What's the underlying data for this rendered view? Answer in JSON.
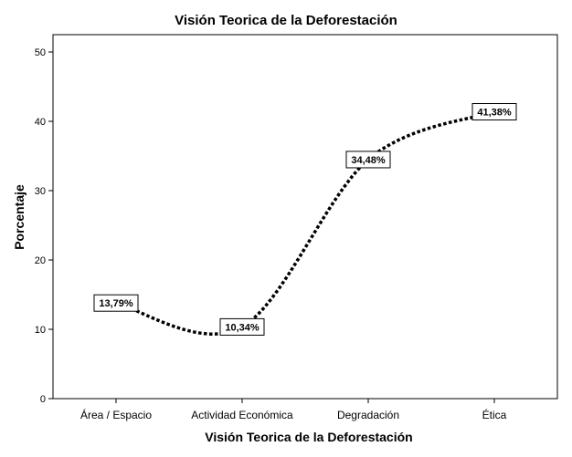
{
  "chart_data": {
    "type": "line",
    "title": "Visión Teorica de la Deforestación",
    "xlabel": "Visión Teorica de la Deforestación",
    "ylabel": "Porcentaje",
    "categories": [
      "Área / Espacio",
      "Actividad Económica",
      "Degradación",
      "Ética"
    ],
    "values": [
      13.79,
      10.34,
      34.48,
      41.38
    ],
    "data_labels": [
      "13,79%",
      "10,34%",
      "34,48%",
      "41,38%"
    ],
    "ylim": [
      0,
      50
    ],
    "yticks": [
      "0",
      "10",
      "20",
      "30",
      "40",
      "50"
    ],
    "grid": false,
    "line_style": "dotted",
    "line_color": "#000000"
  }
}
